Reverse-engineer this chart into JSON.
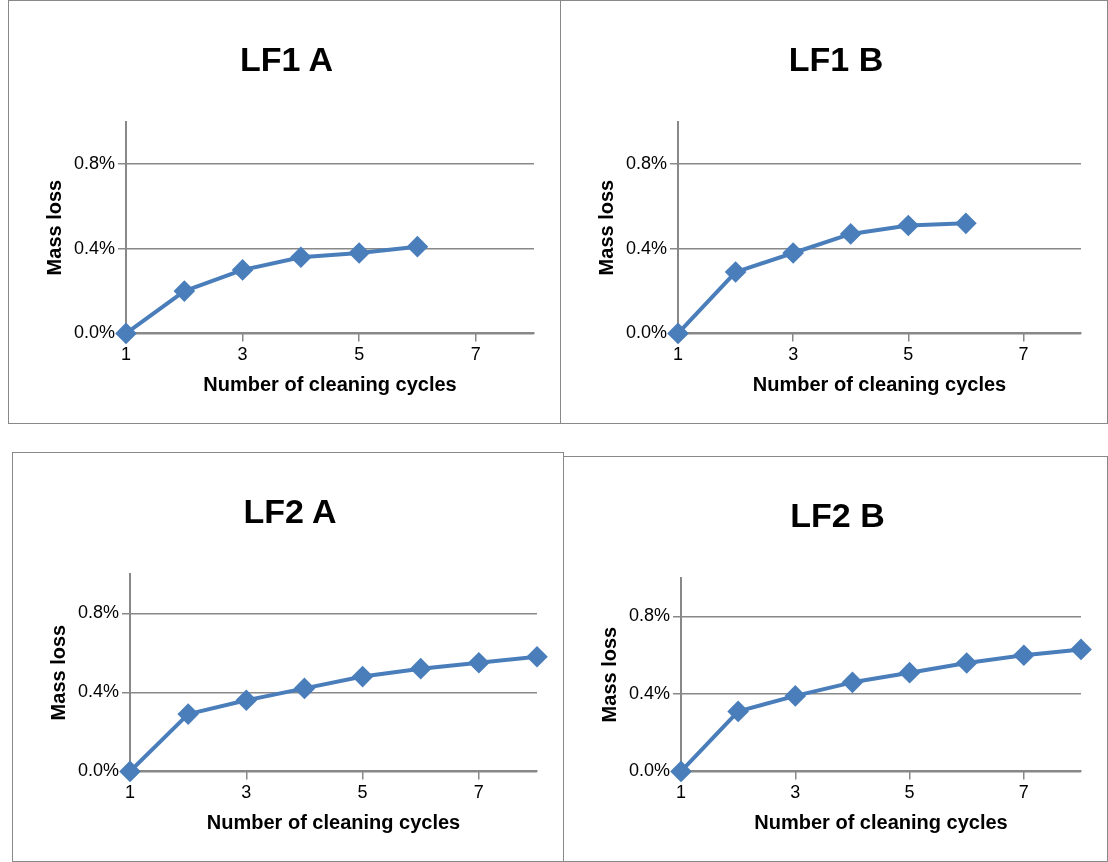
{
  "chart_data": [
    {
      "type": "line",
      "title": "LF1 A",
      "xlabel": "Number of cleaning cycles",
      "ylabel": "Mass loss",
      "x": [
        1,
        2,
        3,
        4,
        5,
        6
      ],
      "series": [
        {
          "color": "#4a7ebb",
          "values": [
            0,
            0.2,
            0.3,
            0.36,
            0.38,
            0.41
          ]
        }
      ],
      "xlim": [
        1,
        8
      ],
      "xticks": [
        1,
        3,
        5,
        7
      ],
      "ylim": [
        0,
        1
      ],
      "yticks": [
        {
          "value": 0,
          "label": "0.0%"
        },
        {
          "value": 0.4,
          "label": "0.4%"
        },
        {
          "value": 0.8,
          "label": "0.8%"
        }
      ],
      "grid": "y",
      "marker": "diamond",
      "line_style": "solid"
    },
    {
      "type": "line",
      "title": "LF1 B",
      "xlabel": "Number of cleaning cycles",
      "ylabel": "Mass loss",
      "x": [
        1,
        2,
        3,
        4,
        5,
        6
      ],
      "series": [
        {
          "color": "#4a7ebb",
          "values": [
            0,
            0.29,
            0.38,
            0.47,
            0.51,
            0.52
          ]
        }
      ],
      "xlim": [
        1,
        8
      ],
      "xticks": [
        1,
        3,
        5,
        7
      ],
      "ylim": [
        0,
        1
      ],
      "yticks": [
        {
          "value": 0,
          "label": "0.0%"
        },
        {
          "value": 0.4,
          "label": "0.4%"
        },
        {
          "value": 0.8,
          "label": "0.8%"
        }
      ],
      "grid": "y",
      "marker": "diamond",
      "line_style": "solid"
    },
    {
      "type": "line",
      "title": "LF2 A",
      "xlabel": "Number of cleaning cycles",
      "ylabel": "Mass loss",
      "x": [
        1,
        2,
        3,
        4,
        5,
        6,
        7,
        8
      ],
      "series": [
        {
          "color": "#4a7ebb",
          "values": [
            0,
            0.29,
            0.36,
            0.42,
            0.48,
            0.52,
            0.55,
            0.58
          ]
        }
      ],
      "xlim": [
        1,
        8
      ],
      "xticks": [
        1,
        3,
        5,
        7
      ],
      "ylim": [
        0,
        1
      ],
      "yticks": [
        {
          "value": 0,
          "label": "0.0%"
        },
        {
          "value": 0.4,
          "label": "0.4%"
        },
        {
          "value": 0.8,
          "label": "0.8%"
        }
      ],
      "grid": "y",
      "marker": "diamond",
      "line_style": "solid"
    },
    {
      "type": "line",
      "title": "LF2 B",
      "xlabel": "Number of cleaning cycles",
      "ylabel": "Mass loss",
      "x": [
        1,
        2,
        3,
        4,
        5,
        6,
        7,
        8
      ],
      "series": [
        {
          "color": "#4a7ebb",
          "values": [
            0,
            0.31,
            0.39,
            0.46,
            0.51,
            0.56,
            0.6,
            0.63
          ]
        }
      ],
      "xlim": [
        1,
        8
      ],
      "xticks": [
        1,
        3,
        5,
        7
      ],
      "ylim": [
        0,
        1
      ],
      "yticks": [
        {
          "value": 0,
          "label": "0.0%"
        },
        {
          "value": 0.4,
          "label": "0.4%"
        },
        {
          "value": 0.8,
          "label": "0.8%"
        }
      ],
      "grid": "y",
      "marker": "diamond",
      "line_style": "solid"
    }
  ]
}
